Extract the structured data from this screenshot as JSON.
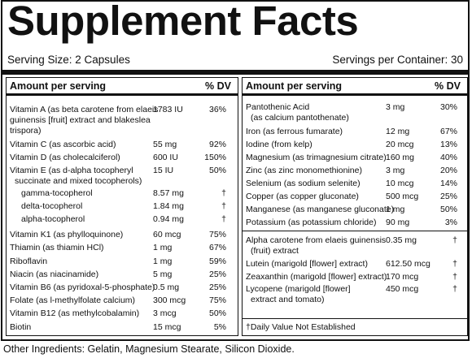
{
  "title": "Supplement Facts",
  "serving_size": "Serving Size: 2 Capsules",
  "servings_per_container": "Servings per Container: 30",
  "left": {
    "amount_header": "Amount per serving",
    "dv_header": "% DV",
    "rows": [
      {
        "name": "Vitamin A (as beta carotene from elaeis",
        "amount": "1783 IU",
        "dv": "36%"
      },
      {
        "name": "guinensis [fruit] extract and blakeslea",
        "amount": "",
        "dv": ""
      },
      {
        "name": "trispora)",
        "amount": "",
        "dv": ""
      },
      {
        "name": "Vitamin C (as ascorbic acid)",
        "amount": "55 mg",
        "dv": "92%"
      },
      {
        "name": "Vitamin D (as cholecalciferol)",
        "amount": "600 IU",
        "dv": "150%"
      },
      {
        "name": "Vitamin E (as d-alpha tocopheryl",
        "amount": "15 IU",
        "dv": "50%"
      },
      {
        "name": "succinate and mixed tocopherols)",
        "amount": "",
        "dv": ""
      },
      {
        "name": "gamma-tocopherol",
        "amount": "8.57 mg",
        "dv": "†"
      },
      {
        "name": "delta-tocopherol",
        "amount": "1.84 mg",
        "dv": "†"
      },
      {
        "name": "alpha-tocopherol",
        "amount": "0.94 mg",
        "dv": "†"
      },
      {
        "name": "Vitamin K1 (as phylloquinone)",
        "amount": "60 mcg",
        "dv": "75%"
      },
      {
        "name": "Thiamin (as thiamin HCl)",
        "amount": "1 mg",
        "dv": "67%"
      },
      {
        "name": "Riboflavin",
        "amount": "1 mg",
        "dv": "59%"
      },
      {
        "name": "Niacin (as niacinamide)",
        "amount": "5 mg",
        "dv": "25%"
      },
      {
        "name": "Vitamin B6 (as pyridoxal-5-phosphate)",
        "amount": "0.5 mg",
        "dv": "25%"
      },
      {
        "name": "Folate (as l-methylfolate calcium)",
        "amount": "300 mcg",
        "dv": "75%"
      },
      {
        "name": "Vitamin B12 (as methylcobalamin)",
        "amount": "3 mcg",
        "dv": "50%"
      },
      {
        "name": "Biotin",
        "amount": "15 mcg",
        "dv": "5%"
      }
    ]
  },
  "right": {
    "amount_header": "Amount per serving",
    "dv_header": "% DV",
    "rows": [
      {
        "name": "Pantothenic Acid",
        "amount": "3 mg",
        "dv": "30%"
      },
      {
        "name": "(as calcium pantothenate)",
        "amount": "",
        "dv": ""
      },
      {
        "name": "Iron (as ferrous fumarate)",
        "amount": "12 mg",
        "dv": "67%"
      },
      {
        "name": "Iodine (from kelp)",
        "amount": "20 mcg",
        "dv": "13%"
      },
      {
        "name": "Magnesium (as trimagnesium citrate)",
        "amount": "160 mg",
        "dv": "40%"
      },
      {
        "name": "Zinc (as zinc monomethionine)",
        "amount": "3 mg",
        "dv": "20%"
      },
      {
        "name": "Selenium (as sodium selenite)",
        "amount": "10 mcg",
        "dv": "14%"
      },
      {
        "name": "Copper (as copper gluconate)",
        "amount": "500 mcg",
        "dv": "25%"
      },
      {
        "name": "Manganese (as manganese gluconate)",
        "amount": "1 mg",
        "dv": "50%"
      },
      {
        "name": "Potassium (as potassium chloride)",
        "amount": "90 mg",
        "dv": "3%"
      },
      {
        "name": "Alpha carotene from elaeis guinensis",
        "amount": "0.35 mg",
        "dv": "†"
      },
      {
        "name": "(fruit) extract",
        "amount": "",
        "dv": ""
      },
      {
        "name": "Lutein (marigold [flower] extract)",
        "amount": "612.50 mcg",
        "dv": "†"
      },
      {
        "name": "Zeaxanthin (marigold [flower] extract)",
        "amount": "170 mcg",
        "dv": "†"
      },
      {
        "name": "Lycopene (marigold [flower]",
        "amount": "450 mcg",
        "dv": "†"
      },
      {
        "name": "extract and tomato)",
        "amount": "",
        "dv": ""
      }
    ]
  },
  "footnote": "†Daily Value Not Established",
  "other_ingredients": "Other Ingredients: Gelatin, Magnesium Stearate, Silicon Dioxide."
}
